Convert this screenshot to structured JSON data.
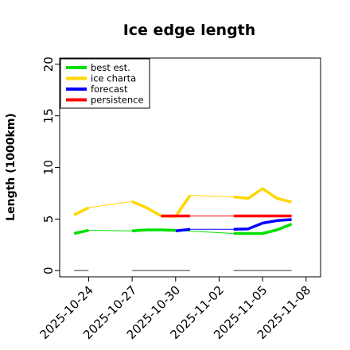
{
  "chart_data": {
    "type": "line",
    "title": "Ice edge length",
    "xlabel": "",
    "ylabel": "Length (1000km)",
    "ylim": [
      -0.6,
      20.6
    ],
    "xlim": [
      "2025-10-22",
      "2025-11-09"
    ],
    "yticks": [
      0,
      5,
      10,
      15,
      20
    ],
    "xticks": [
      {
        "date": "2025-10-24",
        "label": "2025-10-24",
        "color": "#000000"
      },
      {
        "date": "2025-10-27",
        "label": "2025-10-27",
        "color": "#000000"
      },
      {
        "date": "2025-10-30",
        "label": "2025-10-30",
        "color": "#228b22"
      },
      {
        "date": "2025-11-02",
        "label": "2025-11-02",
        "color": "#000000"
      },
      {
        "date": "2025-11-05",
        "label": "2025-11-05",
        "color": "#000000"
      },
      {
        "date": "2025-11-08",
        "label": "2025-11-08",
        "color": "#000000"
      }
    ],
    "grid": false,
    "legend_position": "top-left",
    "series": [
      {
        "name": "best est.",
        "color": "#00e000",
        "segments": [
          [
            [
              "2025-10-23",
              3.6
            ],
            [
              "2025-10-24",
              3.9
            ]
          ],
          [
            [
              "2025-10-27",
              3.85
            ],
            [
              "2025-10-28",
              3.95
            ],
            [
              "2025-10-29",
              3.95
            ],
            [
              "2025-10-30",
              3.9
            ]
          ],
          [
            [
              "2025-11-03",
              3.6
            ],
            [
              "2025-11-04",
              3.6
            ],
            [
              "2025-11-05",
              3.6
            ],
            [
              "2025-11-06",
              3.95
            ],
            [
              "2025-11-07",
              4.5
            ]
          ]
        ],
        "connectors": [
          [
            [
              "2025-10-24",
              3.9
            ],
            [
              "2025-10-27",
              3.85
            ]
          ],
          [
            [
              "2025-10-30",
              3.9
            ],
            [
              "2025-11-03",
              3.6
            ]
          ]
        ]
      },
      {
        "name": "ice charta",
        "color": "#ffd700",
        "segments": [
          [
            [
              "2025-10-23",
              5.4
            ],
            [
              "2025-10-24",
              6.1
            ]
          ],
          [
            [
              "2025-10-27",
              6.7
            ],
            [
              "2025-10-28",
              6.1
            ],
            [
              "2025-10-29",
              5.3
            ],
            [
              "2025-10-30",
              5.25
            ],
            [
              "2025-10-31",
              7.3
            ]
          ],
          [
            [
              "2025-11-03",
              7.15
            ],
            [
              "2025-11-04",
              7.0
            ],
            [
              "2025-11-05",
              7.95
            ],
            [
              "2025-11-06",
              7.0
            ],
            [
              "2025-11-07",
              6.65
            ]
          ]
        ],
        "connectors": [
          [
            [
              "2025-10-24",
              6.1
            ],
            [
              "2025-10-27",
              6.7
            ]
          ],
          [
            [
              "2025-10-31",
              7.3
            ],
            [
              "2025-11-03",
              7.15
            ]
          ]
        ]
      },
      {
        "name": "forecast",
        "color": "#0000ff",
        "segments": [
          [
            [
              "2025-10-30",
              3.85
            ],
            [
              "2025-10-31",
              4.0
            ]
          ],
          [
            [
              "2025-11-03",
              4.0
            ],
            [
              "2025-11-04",
              4.05
            ],
            [
              "2025-11-05",
              4.6
            ],
            [
              "2025-11-06",
              4.85
            ],
            [
              "2025-11-07",
              4.95
            ]
          ]
        ],
        "connectors": [
          [
            [
              "2025-10-31",
              4.0
            ],
            [
              "2025-11-03",
              4.0
            ]
          ]
        ]
      },
      {
        "name": "persistence",
        "color": "#ff0000",
        "segments": [
          [
            [
              "2025-10-29",
              5.3
            ],
            [
              "2025-10-30",
              5.3
            ],
            [
              "2025-10-31",
              5.3
            ]
          ],
          [
            [
              "2025-11-03",
              5.3
            ],
            [
              "2025-11-04",
              5.3
            ],
            [
              "2025-11-05",
              5.3
            ],
            [
              "2025-11-06",
              5.3
            ],
            [
              "2025-11-07",
              5.3
            ]
          ]
        ],
        "connectors": [
          [
            [
              "2025-10-31",
              5.3
            ],
            [
              "2025-11-03",
              5.3
            ]
          ]
        ]
      },
      {
        "color": "#808080",
        "segments": [
          [
            [
              "2025-10-23",
              0
            ],
            [
              "2025-10-24",
              0
            ]
          ],
          [
            [
              "2025-10-27",
              0
            ],
            [
              "2025-10-31",
              0
            ]
          ],
          [
            [
              "2025-11-03",
              0
            ],
            [
              "2025-11-07",
              0
            ]
          ]
        ],
        "connectors": []
      }
    ]
  }
}
